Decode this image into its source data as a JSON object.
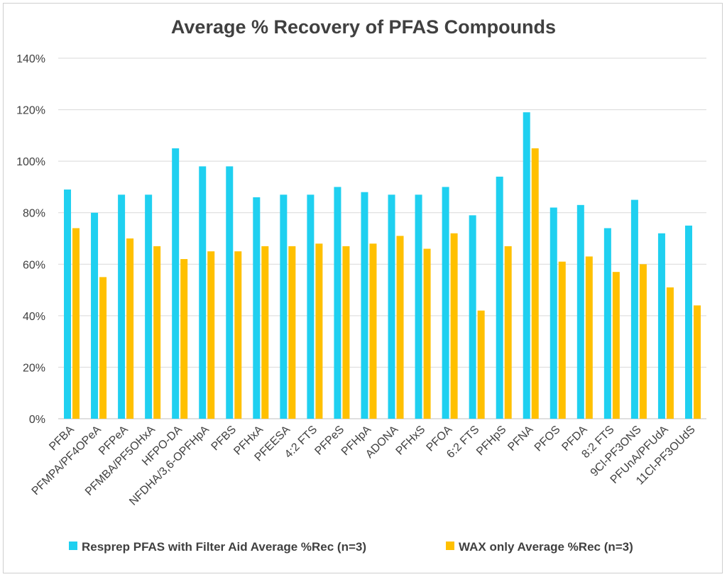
{
  "chart_data": {
    "type": "bar",
    "title": "Average % Recovery of PFAS Compounds",
    "xlabel": "",
    "ylabel": "",
    "ylim": [
      0,
      140
    ],
    "ytick_step": 20,
    "ytick_suffix": "%",
    "grid": true,
    "legend_position": "bottom",
    "categories": [
      "PFBA",
      "PFMPA/PF4OPeA",
      "PFPeA",
      "PFMBA/PF5OHxA",
      "HFPO-DA",
      "NFDHA/3,6-OPFHpA",
      "PFBS",
      "PFHxA",
      "PFEESA",
      "4:2 FTS",
      "PFPeS",
      "PFHpA",
      "ADONA",
      "PFHxS",
      "PFOA",
      "6:2 FTS",
      "PFHpS",
      "PFNA",
      "PFOS",
      "PFDA",
      "8:2 FTS",
      "9Cl-PF3ONS",
      "PFUnA/PFUdA",
      "11Cl-PF3OUdS"
    ],
    "series": [
      {
        "name": "Resprep PFAS with Filter Aid Average %Rec (n=3)",
        "color": "#1fd0f0",
        "values": [
          89,
          80,
          87,
          87,
          105,
          98,
          98,
          86,
          87,
          87,
          90,
          88,
          87,
          87,
          90,
          79,
          94,
          119,
          82,
          83,
          74,
          85,
          72,
          75
        ]
      },
      {
        "name": "WAX only Average %Rec (n=3)",
        "color": "#ffc000",
        "values": [
          74,
          55,
          70,
          67,
          62,
          65,
          65,
          67,
          67,
          68,
          67,
          68,
          71,
          66,
          72,
          42,
          67,
          105,
          61,
          63,
          57,
          60,
          51,
          44
        ]
      }
    ]
  }
}
